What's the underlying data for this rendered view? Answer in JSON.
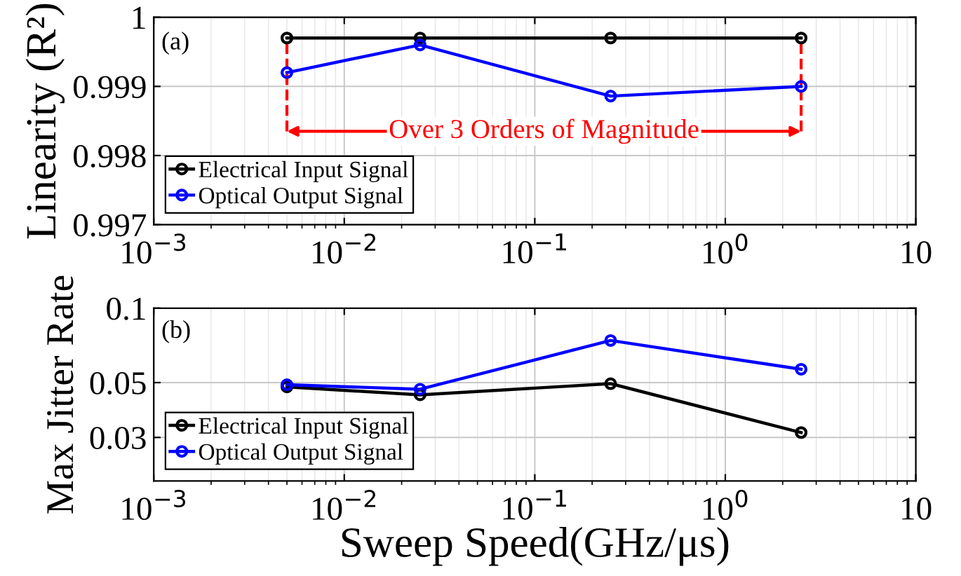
{
  "chart_data": [
    {
      "type": "line",
      "ylabel": "Linearity (R²)",
      "x": [
        0.005,
        0.025,
        0.25,
        2.5
      ],
      "log": "x",
      "xlim": [
        0.001,
        10
      ],
      "xticks": [
        {
          "value": 0.001,
          "label": "10$^{−3}$"
        },
        {
          "value": 0.01,
          "label": "10$^{−2}$"
        },
        {
          "value": 0.1,
          "label": "10$^{−1}$"
        },
        {
          "value": 1,
          "label": "10$^{0}$"
        },
        10
      ],
      "ylim": [
        0.997,
        1
      ],
      "yticks": [
        0.997,
        0.998,
        0.999,
        1
      ],
      "grid": true,
      "legend": "bottom left",
      "marker": "circle",
      "line_style": "solid",
      "series": [
        {
          "name": "Electrical Input Signal",
          "color": "#000000",
          "values": [
            0.9997,
            0.9997,
            0.9997,
            0.9997
          ]
        },
        {
          "name": "Optical Output Signal",
          "color": "#0000ff",
          "values": [
            0.9992,
            0.9996,
            0.99886,
            0.999
          ]
        }
      ],
      "annotations": [
        "(a)"
      ],
      "ref_lines": [
        {
          "axis": "x",
          "value": 0.005,
          "color": "#ff0000",
          "line_style": "dashed",
          "label": "Over 3 Orders of Magnitude"
        },
        {
          "axis": "x",
          "value": 2.5,
          "color": "#ff0000",
          "line_style": "dashed"
        }
      ]
    },
    {
      "type": "line",
      "xlabel": "Sweep Speed(GHz/μs)",
      "ylabel": "Max Jitter Rate",
      "x": [
        0.005,
        0.025,
        0.25,
        2.5
      ],
      "log": "xy",
      "xlim": [
        0.001,
        10
      ],
      "xticks": [
        {
          "value": 0.001,
          "label": "10$^{−3}$"
        },
        {
          "value": 0.01,
          "label": "10$^{−2}$"
        },
        {
          "value": 0.1,
          "label": "10$^{−1}$"
        },
        {
          "value": 1,
          "label": "10$^{0}$"
        },
        10
      ],
      "ylim": [
        0.02,
        0.1
      ],
      "yticks": [
        0.03,
        0.05,
        0.1
      ],
      "grid": true,
      "legend": "bottom left",
      "marker": "circle",
      "line_style": "solid",
      "series": [
        {
          "name": "Electrical Input Signal",
          "color": "#000000",
          "values": [
            0.048,
            0.0446,
            0.0495,
            0.0314
          ]
        },
        {
          "name": "Optical Output Signal",
          "color": "#0000ff",
          "values": [
            0.049,
            0.047,
            0.074,
            0.0566
          ]
        }
      ],
      "annotations": [
        "(b)"
      ]
    }
  ]
}
